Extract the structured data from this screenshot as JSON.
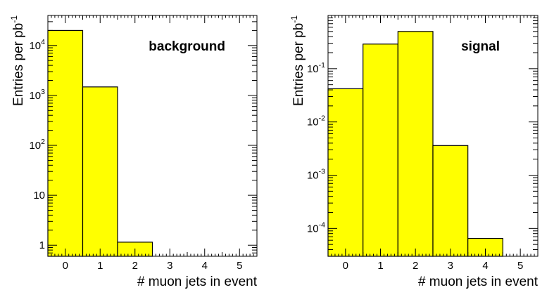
{
  "chart_data": [
    {
      "type": "bar",
      "yscale": "log",
      "label": "background",
      "xlabel": "# muon jets in event",
      "ylabel_main": "Entries per pb",
      "ylabel_sup": "-1",
      "categories": [
        "0",
        "1",
        "2",
        "3",
        "4",
        "5"
      ],
      "values": [
        20000,
        1480,
        1.15,
        0,
        0,
        0
      ],
      "xlim": [
        -0.5,
        5.5
      ],
      "ylim": [
        0.6,
        40000
      ],
      "yticks": [
        {
          "base": "10",
          "exp": "4",
          "value": 10000
        },
        {
          "base": "10",
          "exp": "3",
          "value": 1000
        },
        {
          "base": "10",
          "exp": "2",
          "value": 100
        },
        {
          "base": "10",
          "exp": "",
          "value": 10
        },
        {
          "base": "1",
          "exp": "",
          "value": 1
        }
      ],
      "bar_color": "#ffff00"
    },
    {
      "type": "bar",
      "yscale": "log",
      "label": "signal",
      "xlabel": "# muon jets in event",
      "ylabel_main": "Entries per pb",
      "ylabel_sup": "-1",
      "categories": [
        "0",
        "1",
        "2",
        "3",
        "4",
        "5"
      ],
      "values": [
        0.042,
        0.29,
        0.5,
        0.0036,
        6.5e-05,
        0
      ],
      "xlim": [
        -0.5,
        5.5
      ],
      "ylim": [
        3e-05,
        1.0
      ],
      "yticks": [
        {
          "base": "10",
          "exp": "-1",
          "value": 0.1
        },
        {
          "base": "10",
          "exp": "-2",
          "value": 0.01
        },
        {
          "base": "10",
          "exp": "-3",
          "value": 0.001
        },
        {
          "base": "10",
          "exp": "-4",
          "value": 0.0001
        }
      ],
      "bar_color": "#ffff00"
    }
  ]
}
